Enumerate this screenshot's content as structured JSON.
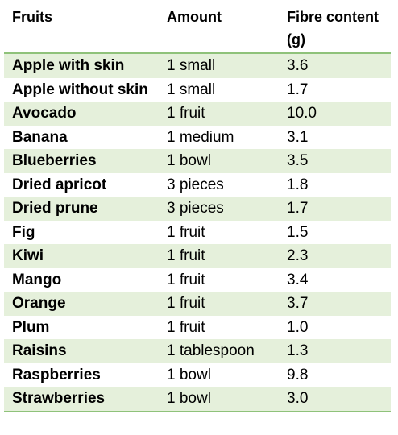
{
  "table": {
    "headers": [
      "Fruits",
      "Amount",
      "Fibre content (g)"
    ],
    "rows": [
      {
        "fruit": "Apple with skin",
        "amount": "1 small",
        "fibre": "3.6"
      },
      {
        "fruit": "Apple without skin",
        "amount": "1 small",
        "fibre": "1.7"
      },
      {
        "fruit": "Avocado",
        "amount": "1 fruit",
        "fibre": "10.0"
      },
      {
        "fruit": "Banana",
        "amount": "1 medium",
        "fibre": "3.1"
      },
      {
        "fruit": "Blueberries",
        "amount": "1 bowl",
        "fibre": "3.5"
      },
      {
        "fruit": "Dried apricot",
        "amount": "3 pieces",
        "fibre": "1.8"
      },
      {
        "fruit": "Dried prune",
        "amount": "3 pieces",
        "fibre": "1.7"
      },
      {
        "fruit": "Fig",
        "amount": "1 fruit",
        "fibre": "1.5"
      },
      {
        "fruit": "Kiwi",
        "amount": "1 fruit",
        "fibre": "2.3"
      },
      {
        "fruit": "Mango",
        "amount": "1 fruit",
        "fibre": "3.4"
      },
      {
        "fruit": "Orange",
        "amount": "1 fruit",
        "fibre": "3.7"
      },
      {
        "fruit": "Plum",
        "amount": "1 fruit",
        "fibre": "1.0"
      },
      {
        "fruit": "Raisins",
        "amount": "1 tablespoon",
        "fibre": "1.3"
      },
      {
        "fruit": "Raspberries",
        "amount": "1 bowl",
        "fibre": "9.8"
      },
      {
        "fruit": "Strawberries",
        "amount": "1 bowl",
        "fibre": "3.0"
      }
    ]
  },
  "colors": {
    "stripe": "#e5f0db",
    "rule": "#8fc27a"
  }
}
